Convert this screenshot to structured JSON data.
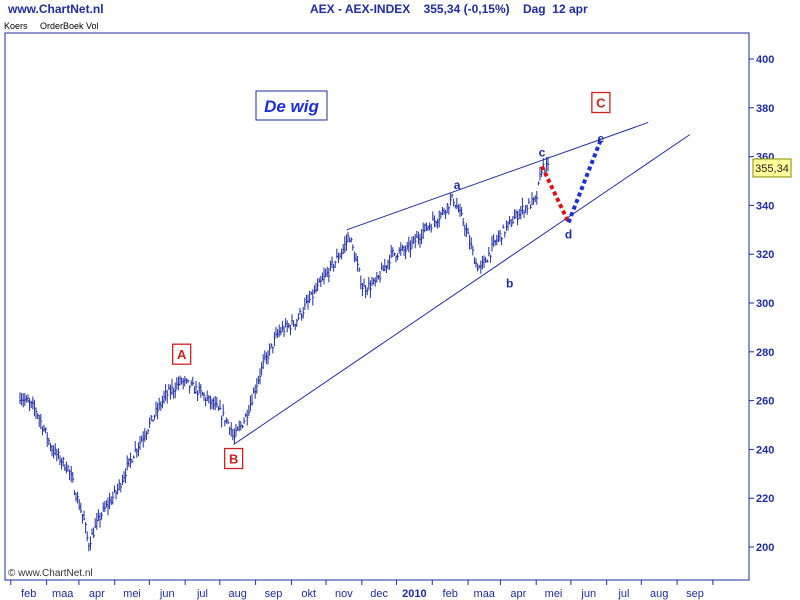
{
  "header": {
    "site": "www.ChartNet.nl",
    "title": "AEX - AEX-INDEX    355,34 (-0,15%)    Dag  12 apr"
  },
  "tabs": [
    "Koers",
    "OrderBoek Vol"
  ],
  "copyright": "© www.ChartNet.nl",
  "colors": {
    "price": "#1e2da0",
    "axis": "#1e2da0",
    "wave_red": "#dd1111",
    "wave_blue": "#1a2fd8",
    "box_red": "#cc2222",
    "last_box": "#ffff99"
  },
  "chart_data": {
    "type": "line",
    "title": "De wig",
    "y_axis": {
      "ticks": [
        200,
        220,
        240,
        260,
        280,
        300,
        320,
        340,
        360,
        380,
        400
      ],
      "range": [
        188,
        412
      ],
      "position": "right"
    },
    "x_axis": {
      "tick_labels": [
        "feb",
        "maa",
        "apr",
        "mei",
        "jun",
        "jul",
        "aug",
        "sep",
        "okt",
        "nov",
        "dec",
        "2010",
        "feb",
        "maa",
        "apr",
        "mei",
        "jun",
        "jul",
        "aug",
        "sep"
      ]
    },
    "last_value": "355,34",
    "series": [
      {
        "type": "bar",
        "x": [
          "2009-01-09",
          "2009-01-23",
          "2009-02-06",
          "2009-02-20",
          "2009-03-06",
          "2009-03-09",
          "2009-03-20",
          "2009-04-03",
          "2009-04-17",
          "2009-05-01",
          "2009-05-15",
          "2009-05-29",
          "2009-06-12",
          "2009-06-26",
          "2009-07-10",
          "2009-07-13",
          "2009-07-24",
          "2009-08-07",
          "2009-08-21",
          "2009-09-04",
          "2009-09-18",
          "2009-10-02",
          "2009-10-16",
          "2009-10-21",
          "2009-11-02",
          "2009-11-13",
          "2009-11-27",
          "2009-12-11",
          "2009-12-25",
          "2010-01-08",
          "2010-01-19",
          "2010-01-29",
          "2010-02-08",
          "2010-02-12",
          "2010-02-26",
          "2010-03-05",
          "2010-03-19",
          "2010-04-01",
          "2010-04-06",
          "2010-04-12"
        ],
        "values": [
          262,
          256,
          240,
          232,
          210,
          201,
          213,
          223,
          238,
          250,
          262,
          268,
          264,
          258,
          250,
          244,
          254,
          274,
          288,
          292,
          302,
          312,
          322,
          328,
          306,
          308,
          320,
          322,
          330,
          336,
          343,
          332,
          316,
          314,
          326,
          330,
          338,
          342,
          356,
          355
        ]
      }
    ],
    "trendlines": [
      {
        "name": "upper",
        "from": [
          "2009-10-19",
          330
        ],
        "to": [
          "2010-07-07",
          374
        ]
      },
      {
        "name": "lower",
        "from": [
          "2009-07-13",
          242
        ],
        "to": [
          "2010-08-12",
          369
        ]
      }
    ],
    "projections": [
      {
        "color": "red",
        "from": [
          "2010-04-06",
          356
        ],
        "to": [
          "2010-04-29",
          333
        ]
      },
      {
        "color": "blue",
        "from": [
          "2010-04-29",
          333
        ],
        "to": [
          "2010-05-27",
          367
        ]
      }
    ],
    "wave_labels_letters": [
      {
        "label": "a",
        "x": "2010-01-19",
        "y": 343
      },
      {
        "label": "b",
        "x": "2010-03-09",
        "y": 312
      },
      {
        "label": "c",
        "x": "2010-04-06",
        "y": 356
      },
      {
        "label": "d",
        "x": "2010-04-29",
        "y": 333
      },
      {
        "label": "e",
        "x": "2010-05-27",
        "y": 367
      }
    ],
    "wave_labels_boxed": [
      {
        "label": "A",
        "x": "2009-05-29",
        "y": 270
      },
      {
        "label": "B",
        "x": "2009-07-13",
        "y": 242
      },
      {
        "label": "C",
        "x": "2010-05-27",
        "y": 367
      }
    ]
  }
}
